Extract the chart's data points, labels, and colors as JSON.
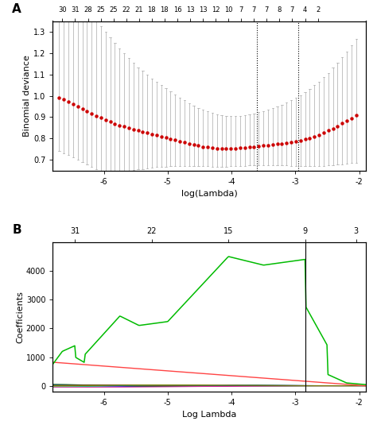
{
  "panel_A": {
    "label": "A",
    "top_ticks": [
      30,
      31,
      28,
      25,
      25,
      22,
      21,
      18,
      18,
      16,
      13,
      13,
      12,
      10,
      7,
      7,
      7,
      8,
      7,
      4,
      2
    ],
    "top_tick_positions": [
      -6.65,
      -6.45,
      -6.25,
      -6.05,
      -5.85,
      -5.65,
      -5.45,
      -5.25,
      -5.05,
      -4.85,
      -4.65,
      -4.45,
      -4.25,
      -4.05,
      -3.85,
      -3.65,
      -3.45,
      -3.25,
      -3.05,
      -2.85,
      -2.65
    ],
    "vline1_x": -3.6,
    "vline2_x": -2.95,
    "xlabel": "log(Lambda)",
    "ylabel": "Binomial deviance",
    "ylim": [
      0.65,
      1.35
    ],
    "xlim": [
      -6.8,
      -1.9
    ],
    "yticks": [
      0.7,
      0.8,
      0.9,
      1.0,
      1.1,
      1.2,
      1.3
    ],
    "xticks": [
      -6,
      -5,
      -4,
      -3,
      -2
    ],
    "dot_color": "#cc0000",
    "error_color": "#aaaaaa"
  },
  "panel_B": {
    "label": "B",
    "top_ticks": [
      31,
      22,
      15,
      9,
      3
    ],
    "top_tick_positions": [
      -6.45,
      -5.25,
      -4.05,
      -2.85,
      -2.05
    ],
    "vline_x": -2.85,
    "xlabel": "Log Lambda",
    "ylabel": "Coefficients",
    "ylim": [
      -200,
      5000
    ],
    "xlim": [
      -6.8,
      -1.9
    ],
    "yticks": [
      0,
      1000,
      2000,
      3000,
      4000
    ],
    "xticks": [
      -6,
      -5,
      -4,
      -3,
      -2
    ]
  }
}
